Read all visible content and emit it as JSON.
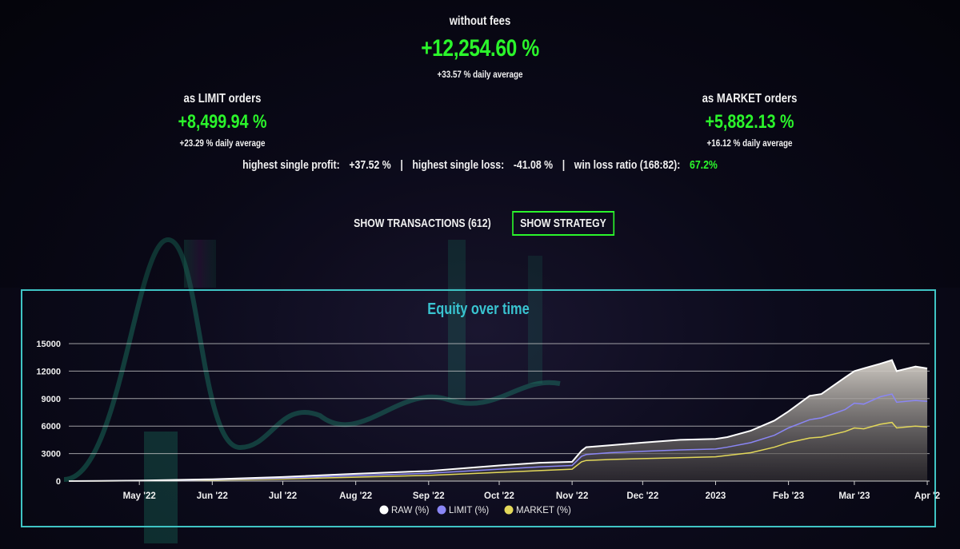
{
  "summary": {
    "raw": {
      "label": "without fees",
      "value": "+12,254.60 %",
      "daily": "+33.57 % daily average"
    },
    "limit": {
      "label": "as LIMIT orders",
      "value": "+8,499.94 %",
      "daily": "+23.29 % daily average"
    },
    "market": {
      "label": "as MARKET orders",
      "value": "+5,882.13 %",
      "daily": "+16.12 % daily average"
    }
  },
  "stats": {
    "profit_label": "highest single profit:",
    "profit_value": "+37.52 %",
    "loss_label": "highest single loss:",
    "loss_value": "-41.08 %",
    "ratio_label": "win loss ratio (168:82):",
    "ratio_value": "67.2%",
    "separator": "|"
  },
  "buttons": {
    "transactions": "SHOW TRANSACTIONS (612)",
    "strategy": "SHOW STRATEGY"
  },
  "colors": {
    "green": "#2bf52b",
    "raw": "#ffffff",
    "limit": "#8a86f5",
    "market": "#e3d85a",
    "border": "#3fc4c4",
    "title": "#39c3d0"
  },
  "chart_data": {
    "type": "area",
    "title": "Equity over time",
    "ylim": [
      0,
      15000
    ],
    "yticks": [
      0,
      3000,
      6000,
      9000,
      12000,
      15000
    ],
    "xlim": [
      0,
      360
    ],
    "xticks": [
      {
        "label": "May '22",
        "day": 30
      },
      {
        "label": "Jun '22",
        "day": 61
      },
      {
        "label": "Jul '22",
        "day": 91
      },
      {
        "label": "Aug '22",
        "day": 122
      },
      {
        "label": "Sep '22",
        "day": 153
      },
      {
        "label": "Oct '22",
        "day": 183
      },
      {
        "label": "Nov '22",
        "day": 214
      },
      {
        "label": "Dec '22",
        "day": 244
      },
      {
        "label": "2023",
        "day": 275
      },
      {
        "label": "Feb '23",
        "day": 306
      },
      {
        "label": "Mar '23",
        "day": 334
      },
      {
        "label": "Apr '2",
        "day": 365
      }
    ],
    "legend_position": "bottom-center",
    "grid": true,
    "series": [
      {
        "name": "RAW (%)",
        "color": "#ffffff",
        "x": [
          0,
          30,
          61,
          91,
          122,
          153,
          183,
          200,
          214,
          218,
          220,
          230,
          244,
          260,
          275,
          280,
          290,
          300,
          306,
          315,
          320,
          330,
          334,
          338,
          345,
          350,
          352,
          360,
          365
        ],
        "y": [
          0,
          50,
          200,
          450,
          800,
          1100,
          1700,
          2000,
          2100,
          3300,
          3700,
          3900,
          4200,
          4500,
          4600,
          4800,
          5500,
          6600,
          7600,
          9300,
          9500,
          11300,
          12000,
          12300,
          12800,
          13200,
          12000,
          12500,
          12300
        ]
      },
      {
        "name": "LIMIT (%)",
        "color": "#8a86f5",
        "x": [
          0,
          30,
          61,
          91,
          122,
          153,
          183,
          200,
          214,
          218,
          220,
          230,
          244,
          260,
          275,
          280,
          290,
          300,
          306,
          315,
          320,
          330,
          334,
          338,
          345,
          350,
          352,
          360,
          365
        ],
        "y": [
          0,
          40,
          150,
          330,
          600,
          850,
          1300,
          1550,
          1700,
          2700,
          2900,
          3100,
          3250,
          3400,
          3500,
          3700,
          4200,
          5000,
          5800,
          6700,
          6900,
          7800,
          8500,
          8400,
          9200,
          9500,
          8600,
          8800,
          8700
        ]
      },
      {
        "name": "MARKET (%)",
        "color": "#e3d85a",
        "x": [
          0,
          30,
          61,
          91,
          122,
          153,
          183,
          200,
          214,
          218,
          220,
          230,
          244,
          260,
          275,
          280,
          290,
          300,
          306,
          315,
          320,
          330,
          334,
          338,
          345,
          350,
          352,
          360,
          365
        ],
        "y": [
          0,
          30,
          100,
          230,
          430,
          620,
          950,
          1150,
          1300,
          2100,
          2250,
          2350,
          2450,
          2550,
          2650,
          2800,
          3100,
          3700,
          4200,
          4700,
          4800,
          5400,
          5800,
          5700,
          6200,
          6400,
          5800,
          6000,
          5900
        ]
      }
    ]
  }
}
